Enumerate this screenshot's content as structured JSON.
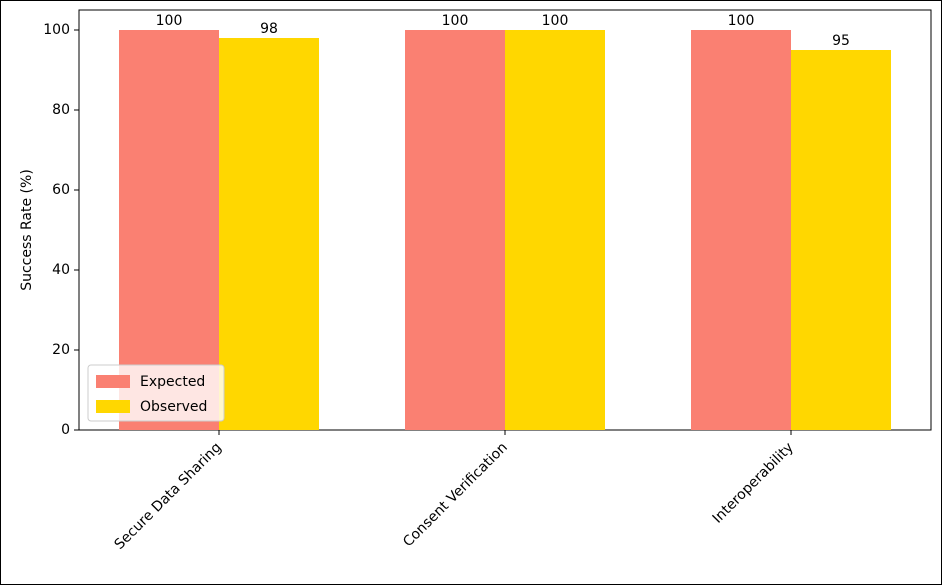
{
  "colors": {
    "expected": "#FA8072",
    "observed": "#FFD700"
  },
  "chart_data": {
    "type": "bar",
    "title": "",
    "xlabel": "",
    "ylabel": "Success Rate (%)",
    "ylim": [
      0,
      105
    ],
    "yticks": [
      "0",
      "20",
      "40",
      "60",
      "80",
      "100"
    ],
    "categories": [
      "Secure Data Sharing",
      "Consent Verification",
      "Interoperability"
    ],
    "series": [
      {
        "name": "Expected",
        "color": "#FA8072",
        "values": [
          100,
          100,
          100
        ],
        "labels": [
          "100",
          "100",
          "100"
        ]
      },
      {
        "name": "Observed",
        "color": "#FFD700",
        "values": [
          98,
          100,
          95
        ],
        "labels": [
          "98",
          "100",
          "95"
        ]
      }
    ],
    "legend_position": "lower-left",
    "grid": false
  }
}
